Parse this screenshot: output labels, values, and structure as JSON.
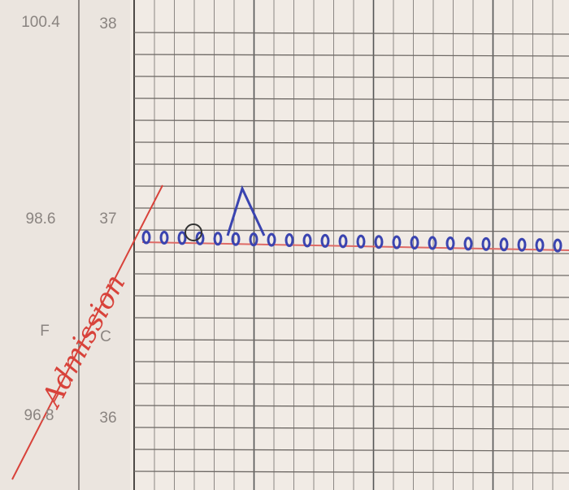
{
  "labels": {
    "f_high": "100.4",
    "c_high": "38",
    "f_mid": "98.6",
    "c_mid": "37",
    "f_unit": "F",
    "c_unit": "C",
    "f_low": "96.8",
    "c_low": "36"
  },
  "annotation": "Admission"
}
